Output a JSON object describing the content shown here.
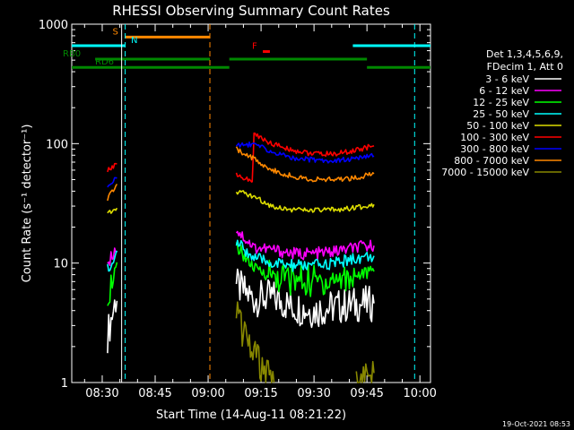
{
  "chart_data": {
    "type": "line",
    "title": "RHESSI Observing Summary Count Rates",
    "xlabel": "Start Time (14-Aug-11 08:21:22)",
    "ylabel": "Count Rate (s⁻¹ detector⁻¹)",
    "y_scale": "log",
    "ylim": [
      1,
      1000
    ],
    "xlim": [
      "08:21:22",
      "10:03:00"
    ],
    "x_ticks": [
      "08:30",
      "08:45",
      "09:00",
      "09:15",
      "09:30",
      "09:45",
      "10:00"
    ],
    "y_ticks": [
      "1",
      "10",
      "100",
      "1000"
    ],
    "info": [
      "Det 1,3,4,5,6,9,",
      "FDecim 1, Att 0"
    ],
    "timestamp": "19-Oct-2021 08:53",
    "series": [
      {
        "name": "3 - 6 keV",
        "color": "#ffffff",
        "values": [
          [
            "08:31:30",
            2.5
          ],
          [
            "08:34:30",
            6.0
          ],
          [
            "09:08:00",
            6.5
          ],
          [
            "09:13:00",
            5.0
          ],
          [
            "09:18:00",
            5.2
          ],
          [
            "09:24:00",
            4.3
          ],
          [
            "09:30:00",
            4.0
          ],
          [
            "09:36:00",
            4.3
          ],
          [
            "09:42:00",
            4.5
          ],
          [
            "09:47:00",
            4.6
          ]
        ]
      },
      {
        "name": "6 - 12 keV",
        "color": "#ff00ff",
        "values": [
          [
            "08:31:30",
            10.0
          ],
          [
            "08:34:30",
            14.0
          ],
          [
            "09:08:00",
            19.0
          ],
          [
            "09:13:00",
            13.5
          ],
          [
            "09:18:00",
            13.0
          ],
          [
            "09:24:00",
            12.0
          ],
          [
            "09:30:00",
            12.0
          ],
          [
            "09:36:00",
            12.5
          ],
          [
            "09:42:00",
            13.5
          ],
          [
            "09:47:00",
            14.0
          ]
        ]
      },
      {
        "name": "12 - 25 keV",
        "color": "#00ff00",
        "values": [
          [
            "08:31:30",
            6.0
          ],
          [
            "08:34:30",
            8.0
          ],
          [
            "09:08:00",
            14.0
          ],
          [
            "09:13:00",
            9.0
          ],
          [
            "09:18:00",
            7.8
          ],
          [
            "09:24:00",
            7.2
          ],
          [
            "09:30:00",
            7.0
          ],
          [
            "09:36:00",
            7.3
          ],
          [
            "09:42:00",
            8.0
          ],
          [
            "09:47:00",
            8.5
          ]
        ]
      },
      {
        "name": "25 - 50 keV",
        "color": "#00ffff",
        "values": [
          [
            "08:31:30",
            9.0
          ],
          [
            "08:34:30",
            12.0
          ],
          [
            "09:08:00",
            15.0
          ],
          [
            "09:13:00",
            11.0
          ],
          [
            "09:18:00",
            10.0
          ],
          [
            "09:24:00",
            9.5
          ],
          [
            "09:30:00",
            9.5
          ],
          [
            "09:36:00",
            10.0
          ],
          [
            "09:42:00",
            11.0
          ],
          [
            "09:47:00",
            11.5
          ]
        ]
      },
      {
        "name": "50 - 100 keV",
        "color": "#dddd00",
        "values": [
          [
            "08:31:30",
            26.0
          ],
          [
            "08:34:30",
            30.0
          ],
          [
            "09:08:00",
            40.0
          ],
          [
            "09:13:00",
            36.0
          ],
          [
            "09:18:00",
            30.0
          ],
          [
            "09:24:00",
            28.0
          ],
          [
            "09:30:00",
            27.5
          ],
          [
            "09:36:00",
            28.0
          ],
          [
            "09:42:00",
            29.0
          ],
          [
            "09:47:00",
            31.0
          ]
        ]
      },
      {
        "name": "100 - 300 keV",
        "color": "#ff0000",
        "values": [
          [
            "08:31:30",
            60.0
          ],
          [
            "08:34:30",
            70.0
          ],
          [
            "09:08:00",
            55.0
          ],
          [
            "09:12:30",
            48.0
          ],
          [
            "09:13:00",
            120.0
          ],
          [
            "09:18:00",
            100.0
          ],
          [
            "09:24:00",
            88.0
          ],
          [
            "09:30:00",
            82.0
          ],
          [
            "09:36:00",
            82.0
          ],
          [
            "09:42:00",
            88.0
          ],
          [
            "09:47:00",
            96.0
          ]
        ]
      },
      {
        "name": "300 - 800 keV",
        "color": "#0000ff",
        "values": [
          [
            "08:31:30",
            43.0
          ],
          [
            "08:34:30",
            55.0
          ],
          [
            "09:08:00",
            95.0
          ],
          [
            "09:13:00",
            100.0
          ],
          [
            "09:18:00",
            85.0
          ],
          [
            "09:24:00",
            76.0
          ],
          [
            "09:30:00",
            73.0
          ],
          [
            "09:36:00",
            72.0
          ],
          [
            "09:42:00",
            75.0
          ],
          [
            "09:47:00",
            79.0
          ]
        ]
      },
      {
        "name": "800 - 7000 keV",
        "color": "#ff8800",
        "values": [
          [
            "08:31:30",
            35.0
          ],
          [
            "08:34:30",
            45.0
          ],
          [
            "09:08:00",
            90.0
          ],
          [
            "09:13:00",
            75.0
          ],
          [
            "09:18:00",
            60.0
          ],
          [
            "09:24:00",
            53.0
          ],
          [
            "09:30:00",
            50.0
          ],
          [
            "09:36:00",
            50.0
          ],
          [
            "09:42:00",
            52.0
          ],
          [
            "09:47:00",
            56.0
          ]
        ]
      },
      {
        "name": "7000 - 15000 keV",
        "color": "#888800",
        "values": [
          [
            "09:08:00",
            3.5
          ],
          [
            "09:11:00",
            2.3
          ],
          [
            "09:14:00",
            1.5
          ],
          [
            "09:17:00",
            1.1
          ],
          [
            "09:19:00",
            1.0
          ],
          [
            "09:42:00",
            1.0
          ],
          [
            "09:47:00",
            1.2
          ]
        ]
      }
    ],
    "flags": [
      {
        "label": "S",
        "color": "#ff8800",
        "y": 780,
        "segments": [
          [
            "08:36:30",
            "09:00:30"
          ]
        ]
      },
      {
        "label": "N",
        "color": "#00ffff",
        "y": 660,
        "segments": [
          [
            "08:21:22",
            "08:36:30"
          ],
          [
            "09:41:00",
            "10:03:00"
          ]
        ]
      },
      {
        "label": "RB0",
        "color": "#008800",
        "y": 510,
        "segments": [
          [
            "08:28:00",
            "09:00:30"
          ],
          [
            "09:06:00",
            "09:45:00"
          ]
        ]
      },
      {
        "label": "RD6",
        "color": "#008800",
        "y": 435,
        "segments": [
          [
            "08:21:22",
            "09:06:00"
          ],
          [
            "09:45:00",
            "10:03:00"
          ]
        ]
      },
      {
        "label": "F",
        "color": "#ff0000",
        "y": 590,
        "segments": [
          [
            "09:15:30",
            "09:17:30"
          ]
        ]
      }
    ],
    "markers": [
      {
        "time": "08:35:30",
        "color": "#ffffff",
        "style": "solid"
      },
      {
        "time": "08:36:30",
        "color": "#00ffff",
        "style": "dashed"
      },
      {
        "time": "09:00:30",
        "color": "#ff8800",
        "style": "dashed"
      },
      {
        "time": "09:58:30",
        "color": "#00ffff",
        "style": "dashed"
      }
    ],
    "grid": false,
    "legend_position": "right"
  }
}
